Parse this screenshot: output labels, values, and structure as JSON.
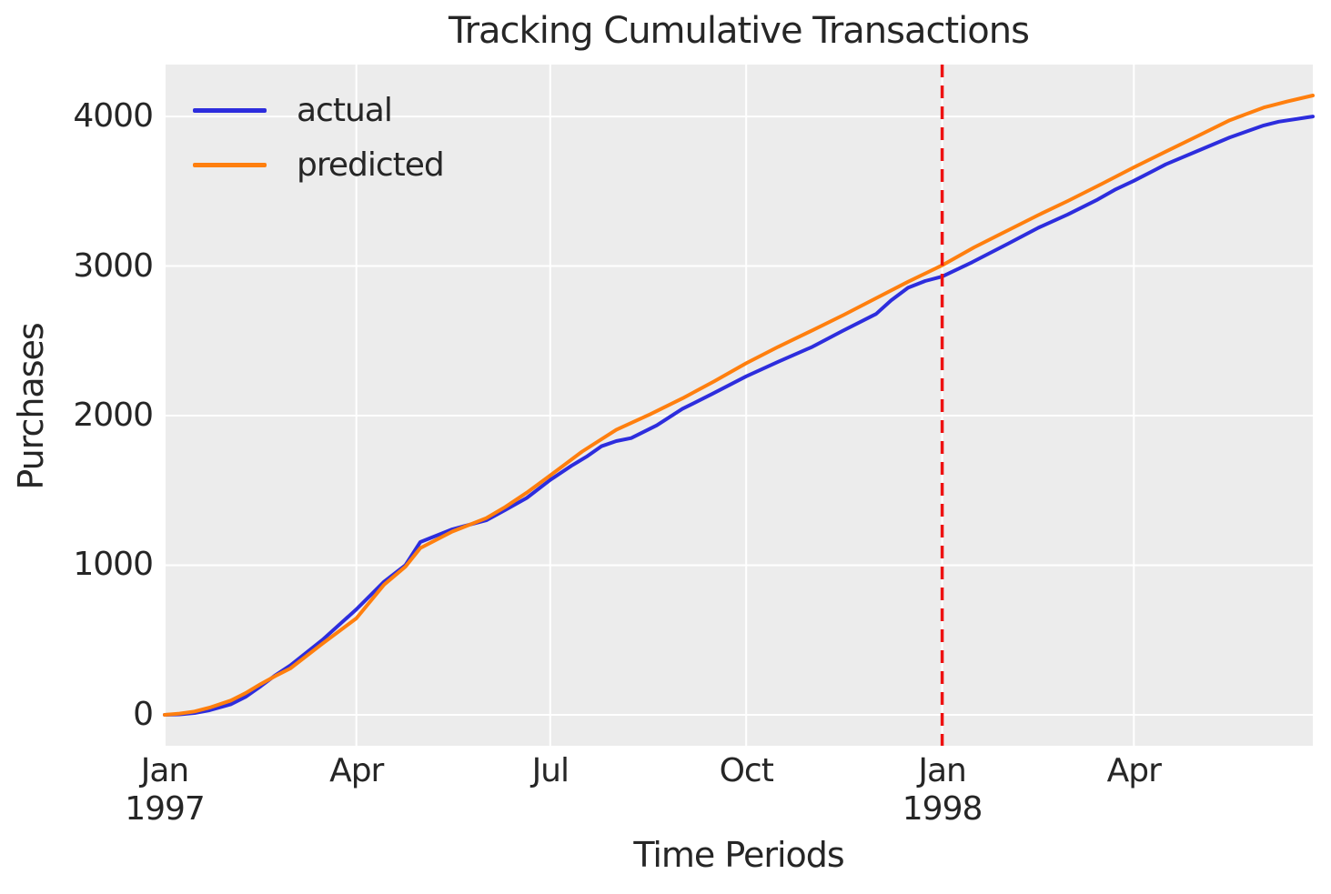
{
  "title": "Tracking Cumulative Transactions",
  "axes": {
    "xlabel": "Time Periods",
    "ylabel": "Purchases"
  },
  "legend": [
    {
      "label": "actual",
      "color": "#2d2ddd"
    },
    {
      "label": "predicted",
      "color": "#ff7f0e"
    }
  ],
  "colors": {
    "actual": "#2d2ddd",
    "predicted": "#ff7f0e",
    "vline": "#ee1111",
    "plot_bg": "#ececec",
    "grid": "#ffffff",
    "text": "#262626",
    "figure_bg": "#ffffff"
  },
  "chart_data": {
    "type": "line",
    "title": "Tracking Cumulative Transactions",
    "xlabel": "Time Periods",
    "ylabel": "Purchases",
    "x_unit": "days since 1997-01-01",
    "xlim": [
      0,
      539
    ],
    "ylim": [
      -207,
      4347
    ],
    "grid": true,
    "legend_position": "upper left",
    "x_ticks": [
      {
        "day": 0,
        "label": "Jan",
        "sublabel": "1997"
      },
      {
        "day": 90,
        "label": "Apr",
        "sublabel": ""
      },
      {
        "day": 181,
        "label": "Jul",
        "sublabel": ""
      },
      {
        "day": 273,
        "label": "Oct",
        "sublabel": ""
      },
      {
        "day": 365,
        "label": "Jan",
        "sublabel": "1998"
      },
      {
        "day": 455,
        "label": "Apr",
        "sublabel": ""
      }
    ],
    "y_ticks": [
      0,
      1000,
      2000,
      3000,
      4000
    ],
    "vline": {
      "day": 365,
      "color": "#ee1111",
      "linestyle": "dashed"
    },
    "series": [
      {
        "name": "actual",
        "color": "#2d2ddd",
        "points": [
          [
            0,
            0
          ],
          [
            7,
            3
          ],
          [
            14,
            12
          ],
          [
            21,
            30
          ],
          [
            31,
            70
          ],
          [
            38,
            120
          ],
          [
            45,
            190
          ],
          [
            52,
            265
          ],
          [
            59,
            330
          ],
          [
            74,
            500
          ],
          [
            90,
            705
          ],
          [
            103,
            890
          ],
          [
            113,
            1000
          ],
          [
            120,
            1155
          ],
          [
            135,
            1240
          ],
          [
            151,
            1300
          ],
          [
            160,
            1370
          ],
          [
            170,
            1450
          ],
          [
            181,
            1570
          ],
          [
            191,
            1665
          ],
          [
            198,
            1725
          ],
          [
            205,
            1795
          ],
          [
            212,
            1830
          ],
          [
            219,
            1850
          ],
          [
            231,
            1935
          ],
          [
            243,
            2045
          ],
          [
            257,
            2145
          ],
          [
            273,
            2263
          ],
          [
            288,
            2360
          ],
          [
            304,
            2460
          ],
          [
            318,
            2565
          ],
          [
            334,
            2680
          ],
          [
            341,
            2770
          ],
          [
            349,
            2855
          ],
          [
            357,
            2900
          ],
          [
            365,
            2930
          ],
          [
            379,
            3025
          ],
          [
            396,
            3150
          ],
          [
            410,
            3255
          ],
          [
            424,
            3345
          ],
          [
            438,
            3445
          ],
          [
            446,
            3510
          ],
          [
            455,
            3570
          ],
          [
            470,
            3680
          ],
          [
            485,
            3770
          ],
          [
            500,
            3860
          ],
          [
            516,
            3940
          ],
          [
            523,
            3965
          ],
          [
            539,
            4000
          ]
        ]
      },
      {
        "name": "predicted",
        "color": "#ff7f0e",
        "points": [
          [
            0,
            0
          ],
          [
            7,
            8
          ],
          [
            14,
            22
          ],
          [
            21,
            48
          ],
          [
            31,
            95
          ],
          [
            38,
            145
          ],
          [
            45,
            205
          ],
          [
            52,
            260
          ],
          [
            59,
            310
          ],
          [
            74,
            475
          ],
          [
            90,
            645
          ],
          [
            103,
            870
          ],
          [
            113,
            990
          ],
          [
            120,
            1115
          ],
          [
            135,
            1225
          ],
          [
            151,
            1315
          ],
          [
            160,
            1390
          ],
          [
            170,
            1485
          ],
          [
            181,
            1600
          ],
          [
            196,
            1760
          ],
          [
            212,
            1905
          ],
          [
            228,
            2010
          ],
          [
            243,
            2115
          ],
          [
            258,
            2230
          ],
          [
            273,
            2350
          ],
          [
            288,
            2460
          ],
          [
            304,
            2570
          ],
          [
            319,
            2675
          ],
          [
            334,
            2785
          ],
          [
            349,
            2895
          ],
          [
            365,
            3005
          ],
          [
            380,
            3125
          ],
          [
            396,
            3240
          ],
          [
            410,
            3340
          ],
          [
            424,
            3435
          ],
          [
            440,
            3550
          ],
          [
            455,
            3660
          ],
          [
            470,
            3765
          ],
          [
            485,
            3870
          ],
          [
            500,
            3975
          ],
          [
            516,
            4060
          ],
          [
            527,
            4100
          ],
          [
            539,
            4140
          ]
        ]
      }
    ]
  }
}
